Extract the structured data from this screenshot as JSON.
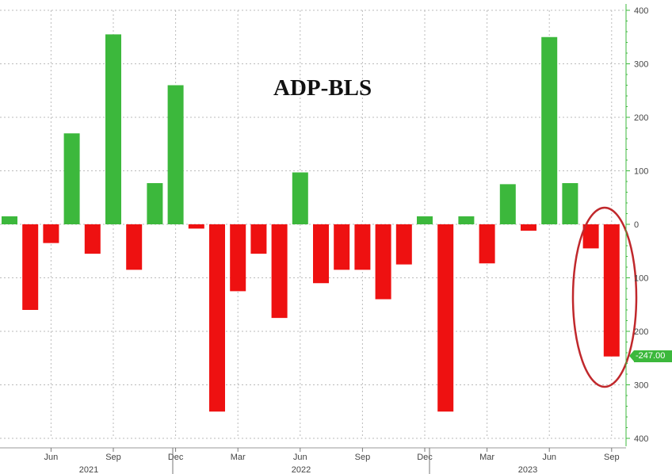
{
  "chart_data": {
    "type": "bar",
    "title": "ADP-BLS",
    "ylim": [
      -400,
      400
    ],
    "yticks": [
      400,
      300,
      200,
      100,
      0,
      -100,
      -200,
      -300,
      -400
    ],
    "ytick_labels": [
      "400",
      "300",
      "200",
      "100",
      "0",
      "100",
      "200",
      "300",
      "400"
    ],
    "grid": true,
    "months": [
      "Apr 2021",
      "May 2021",
      "Jun 2021",
      "Jul 2021",
      "Aug 2021",
      "Sep 2021",
      "Oct 2021",
      "Nov 2021",
      "Dec 2021",
      "Jan 2022",
      "Feb 2022",
      "Mar 2022",
      "Apr 2022",
      "May 2022",
      "Jun 2022",
      "Jul 2022",
      "Aug 2022",
      "Sep 2022",
      "Oct 2022",
      "Nov 2022",
      "Dec 2022",
      "Jan 2023",
      "Feb 2023",
      "Mar 2023",
      "Apr 2023",
      "May 2023",
      "Jun 2023",
      "Jul 2023",
      "Aug 2023",
      "Sep 2023"
    ],
    "values": [
      15,
      -160,
      -35,
      170,
      -55,
      355,
      -85,
      77,
      260,
      -8,
      -350,
      -125,
      -55,
      -175,
      97,
      -110,
      -85,
      -85,
      -140,
      -75,
      15,
      -350,
      15,
      -73,
      75,
      -12,
      350,
      77,
      -45,
      -247
    ],
    "month_ticks": [
      "Jun",
      "Sep",
      "Dec",
      "Mar",
      "Jun",
      "Sep",
      "Dec",
      "Mar",
      "Jun",
      "Sep"
    ],
    "year_labels": [
      "2021",
      "2022",
      "2023"
    ],
    "last_value_label": "-247.00",
    "colors": {
      "positive": "#3cb83c",
      "negative": "#ee1111",
      "axis": "#3cb83c",
      "highlight_ring": "#c0282c"
    }
  }
}
